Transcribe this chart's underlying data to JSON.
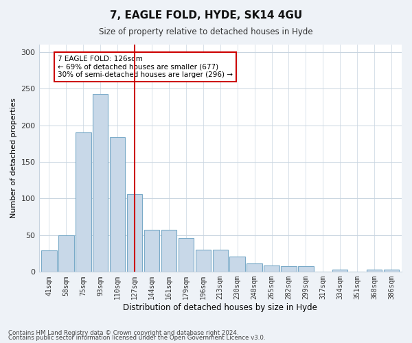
{
  "title": "7, EAGLE FOLD, HYDE, SK14 4GU",
  "subtitle": "Size of property relative to detached houses in Hyde",
  "xlabel": "Distribution of detached houses by size in Hyde",
  "ylabel": "Number of detached properties",
  "bar_color": "#c8d8e8",
  "bar_edge_color": "#7aaac8",
  "vline_color": "#cc0000",
  "annotation_text": "7 EAGLE FOLD: 126sqm\n← 69% of detached houses are smaller (677)\n30% of semi-detached houses are larger (296) →",
  "annotation_box_color": "#ffffff",
  "annotation_box_edge": "#cc0000",
  "categories": [
    "41sqm",
    "58sqm",
    "75sqm",
    "93sqm",
    "110sqm",
    "127sqm",
    "144sqm",
    "161sqm",
    "179sqm",
    "196sqm",
    "213sqm",
    "230sqm",
    "248sqm",
    "265sqm",
    "282sqm",
    "299sqm",
    "317sqm",
    "334sqm",
    "351sqm",
    "368sqm",
    "386sqm"
  ],
  "values": [
    29,
    50,
    190,
    243,
    184,
    106,
    57,
    57,
    46,
    30,
    30,
    21,
    12,
    9,
    8,
    8,
    0,
    3,
    0,
    3,
    3
  ],
  "ylim": [
    0,
    310
  ],
  "yticks": [
    0,
    50,
    100,
    150,
    200,
    250,
    300
  ],
  "footer1": "Contains HM Land Registry data © Crown copyright and database right 2024.",
  "footer2": "Contains public sector information licensed under the Open Government Licence v3.0.",
  "bg_color": "#eef2f7",
  "plot_bg_color": "#ffffff",
  "grid_color": "#c8d4e0"
}
